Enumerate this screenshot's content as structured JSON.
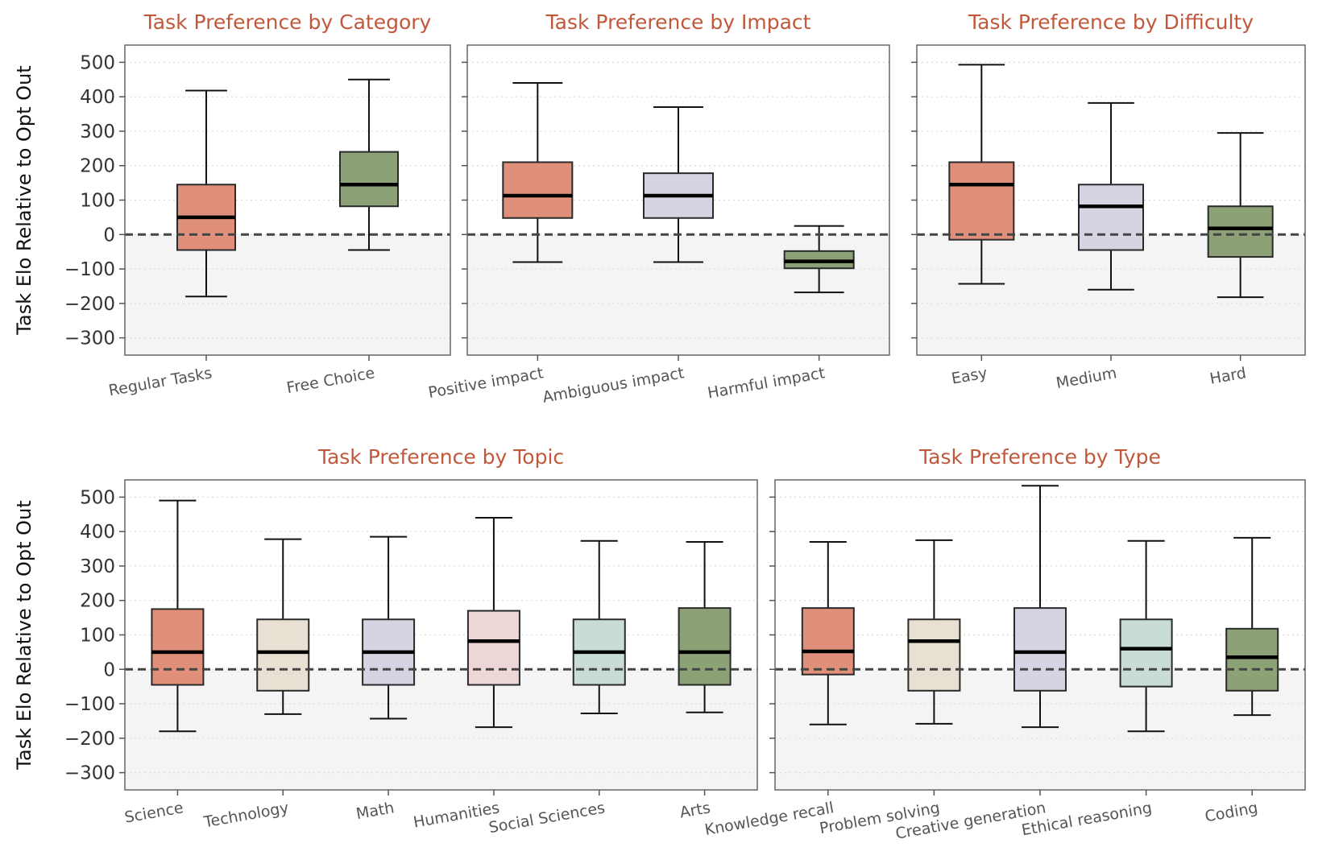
{
  "chart_data": [
    {
      "type": "box",
      "title": "Task Preference by Category",
      "ylabel": "Task Elo Relative to Opt Out",
      "ylim": [
        -350,
        550
      ],
      "yticks": [
        500,
        400,
        300,
        200,
        100,
        0,
        -100,
        -200,
        -300
      ],
      "reference_line": 0,
      "categories": [
        "Regular Tasks",
        "Free Choice"
      ],
      "boxes": [
        {
          "min": -180,
          "q1": -45,
          "median": 50,
          "q3": 145,
          "max": 418,
          "color": "#e0907a"
        },
        {
          "min": -45,
          "q1": 82,
          "median": 145,
          "q3": 240,
          "max": 450,
          "color": "#8da177"
        }
      ]
    },
    {
      "type": "box",
      "title": "Task Preference by Impact",
      "ylim": [
        -350,
        550
      ],
      "yticks": [
        500,
        400,
        300,
        200,
        100,
        0,
        -100,
        -200,
        -300
      ],
      "reference_line": 0,
      "categories": [
        "Positive impact",
        "Ambiguous impact",
        "Harmful impact"
      ],
      "boxes": [
        {
          "min": -80,
          "q1": 48,
          "median": 113,
          "q3": 210,
          "max": 440,
          "color": "#e0907a"
        },
        {
          "min": -80,
          "q1": 48,
          "median": 113,
          "q3": 178,
          "max": 370,
          "color": "#d4d4e3"
        },
        {
          "min": -168,
          "q1": -98,
          "median": -78,
          "q3": -48,
          "max": 25,
          "color": "#8da177"
        }
      ]
    },
    {
      "type": "box",
      "title": "Task Preference by Difficulty",
      "ylim": [
        -350,
        550
      ],
      "yticks": [
        500,
        400,
        300,
        200,
        100,
        0,
        -100,
        -200,
        -300
      ],
      "reference_line": 0,
      "categories": [
        "Easy",
        "Medium",
        "Hard"
      ],
      "boxes": [
        {
          "min": -143,
          "q1": -15,
          "median": 145,
          "q3": 210,
          "max": 493,
          "color": "#e0907a"
        },
        {
          "min": -160,
          "q1": -45,
          "median": 82,
          "q3": 145,
          "max": 382,
          "color": "#d4d4e3"
        },
        {
          "min": -182,
          "q1": -65,
          "median": 18,
          "q3": 82,
          "max": 295,
          "color": "#8da177"
        }
      ]
    },
    {
      "type": "box",
      "title": "Task Preference by Topic",
      "ylabel": "Task Elo Relative to Opt Out",
      "ylim": [
        -350,
        550
      ],
      "yticks": [
        500,
        400,
        300,
        200,
        100,
        0,
        -100,
        -200,
        -300
      ],
      "reference_line": 0,
      "categories": [
        "Science",
        "Technology",
        "Math",
        "Humanities",
        "Social Sciences",
        "Arts"
      ],
      "boxes": [
        {
          "min": -180,
          "q1": -45,
          "median": 50,
          "q3": 175,
          "max": 490,
          "color": "#e0907a"
        },
        {
          "min": -130,
          "q1": -62,
          "median": 50,
          "q3": 145,
          "max": 378,
          "color": "#e8e0d2"
        },
        {
          "min": -143,
          "q1": -45,
          "median": 50,
          "q3": 145,
          "max": 385,
          "color": "#d4d4e3"
        },
        {
          "min": -168,
          "q1": -45,
          "median": 82,
          "q3": 170,
          "max": 440,
          "color": "#eed6d7"
        },
        {
          "min": -128,
          "q1": -45,
          "median": 50,
          "q3": 145,
          "max": 373,
          "color": "#c9dcd5"
        },
        {
          "min": -125,
          "q1": -45,
          "median": 50,
          "q3": 178,
          "max": 370,
          "color": "#8da177"
        }
      ]
    },
    {
      "type": "box",
      "title": "Task Preference by Type",
      "ylim": [
        -350,
        550
      ],
      "yticks": [
        500,
        400,
        300,
        200,
        100,
        0,
        -100,
        -200,
        -300
      ],
      "reference_line": 0,
      "categories": [
        "Knowledge recall",
        "Problem solving",
        "Creative generation",
        "Ethical reasoning",
        "Coding"
      ],
      "boxes": [
        {
          "min": -160,
          "q1": -15,
          "median": 52,
          "q3": 178,
          "max": 370,
          "color": "#e0907a"
        },
        {
          "min": -158,
          "q1": -62,
          "median": 82,
          "q3": 145,
          "max": 375,
          "color": "#e8e0d2"
        },
        {
          "min": -168,
          "q1": -62,
          "median": 50,
          "q3": 178,
          "max": 533,
          "color": "#d4d4e3"
        },
        {
          "min": -180,
          "q1": -50,
          "median": 60,
          "q3": 145,
          "max": 373,
          "color": "#c9dcd5"
        },
        {
          "min": -133,
          "q1": -62,
          "median": 35,
          "q3": 118,
          "max": 382,
          "color": "#8da177"
        }
      ]
    }
  ]
}
